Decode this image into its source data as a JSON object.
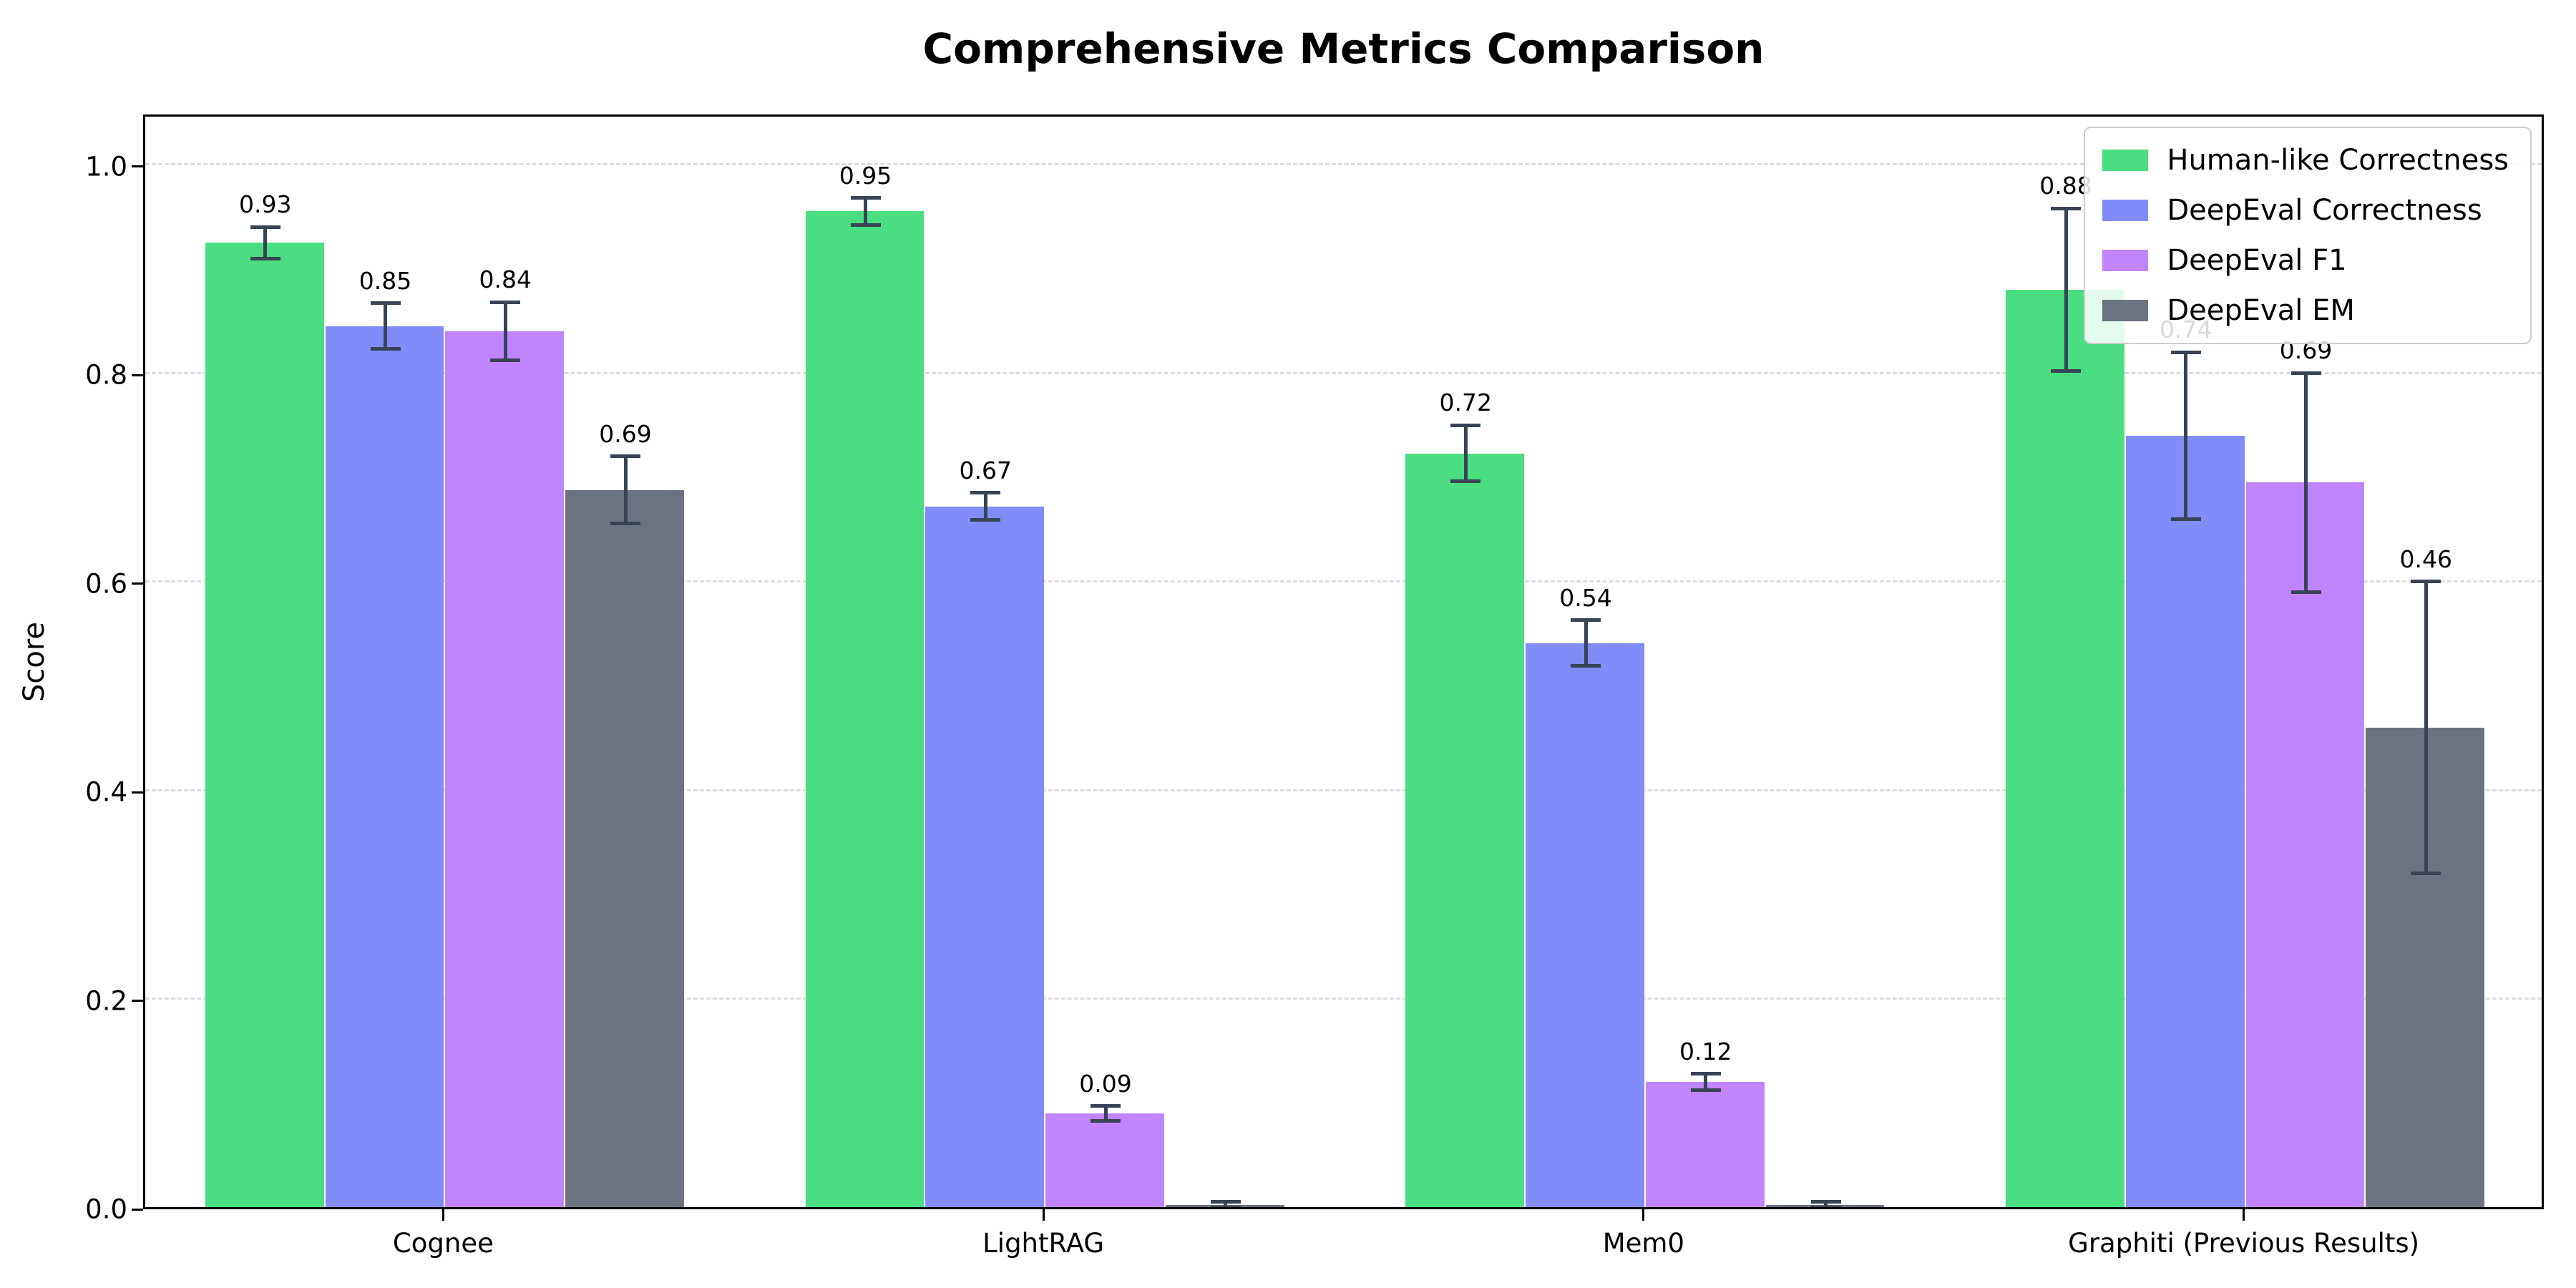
{
  "title": "Comprehensive Metrics Comparison",
  "chart_data": {
    "type": "bar",
    "title": "Comprehensive Metrics Comparison",
    "xlabel": "",
    "ylabel": "Score",
    "ylim": [
      0,
      1.05
    ],
    "yticks": [
      0.0,
      0.2,
      0.4,
      0.6,
      0.8,
      1.0
    ],
    "ytick_labels": [
      "0.0",
      "0.2",
      "0.4",
      "0.6",
      "0.8",
      "1.0"
    ],
    "grid": "horizontal-dashed",
    "legend_position": "upper-right",
    "categories": [
      "Cognee",
      "LightRAG",
      "Mem0",
      "Graphiti (Previous Results)"
    ],
    "series": [
      {
        "name": "Human-like Correctness",
        "color": "#4ade80",
        "values": [
          0.925,
          0.955,
          0.723,
          0.88
        ],
        "labels": [
          "0.93",
          "0.95",
          "0.72",
          "0.88"
        ],
        "errors": [
          0.015,
          0.013,
          0.027,
          0.078
        ]
      },
      {
        "name": "DeepEval Correctness",
        "color": "#818cf8",
        "values": [
          0.845,
          0.672,
          0.541,
          0.74
        ],
        "labels": [
          "0.85",
          "0.67",
          "0.54",
          "0.74"
        ],
        "errors": [
          0.022,
          0.013,
          0.022,
          0.08
        ]
      },
      {
        "name": "DeepEval F1",
        "color": "#c084fc",
        "values": [
          0.84,
          0.09,
          0.12,
          0.695
        ],
        "labels": [
          "0.84",
          "0.09",
          "0.12",
          "0.69"
        ],
        "errors": [
          0.028,
          0.007,
          0.008,
          0.105
        ]
      },
      {
        "name": "DeepEval EM",
        "color": "#6b7280",
        "values": [
          0.688,
          0.002,
          0.002,
          0.46
        ],
        "labels": [
          "0.69",
          "",
          "",
          "0.46"
        ],
        "errors": [
          0.032,
          0.003,
          0.003,
          0.14
        ]
      }
    ],
    "error_bar_color": "#384455",
    "gridline_color": "#dcdcdc"
  }
}
